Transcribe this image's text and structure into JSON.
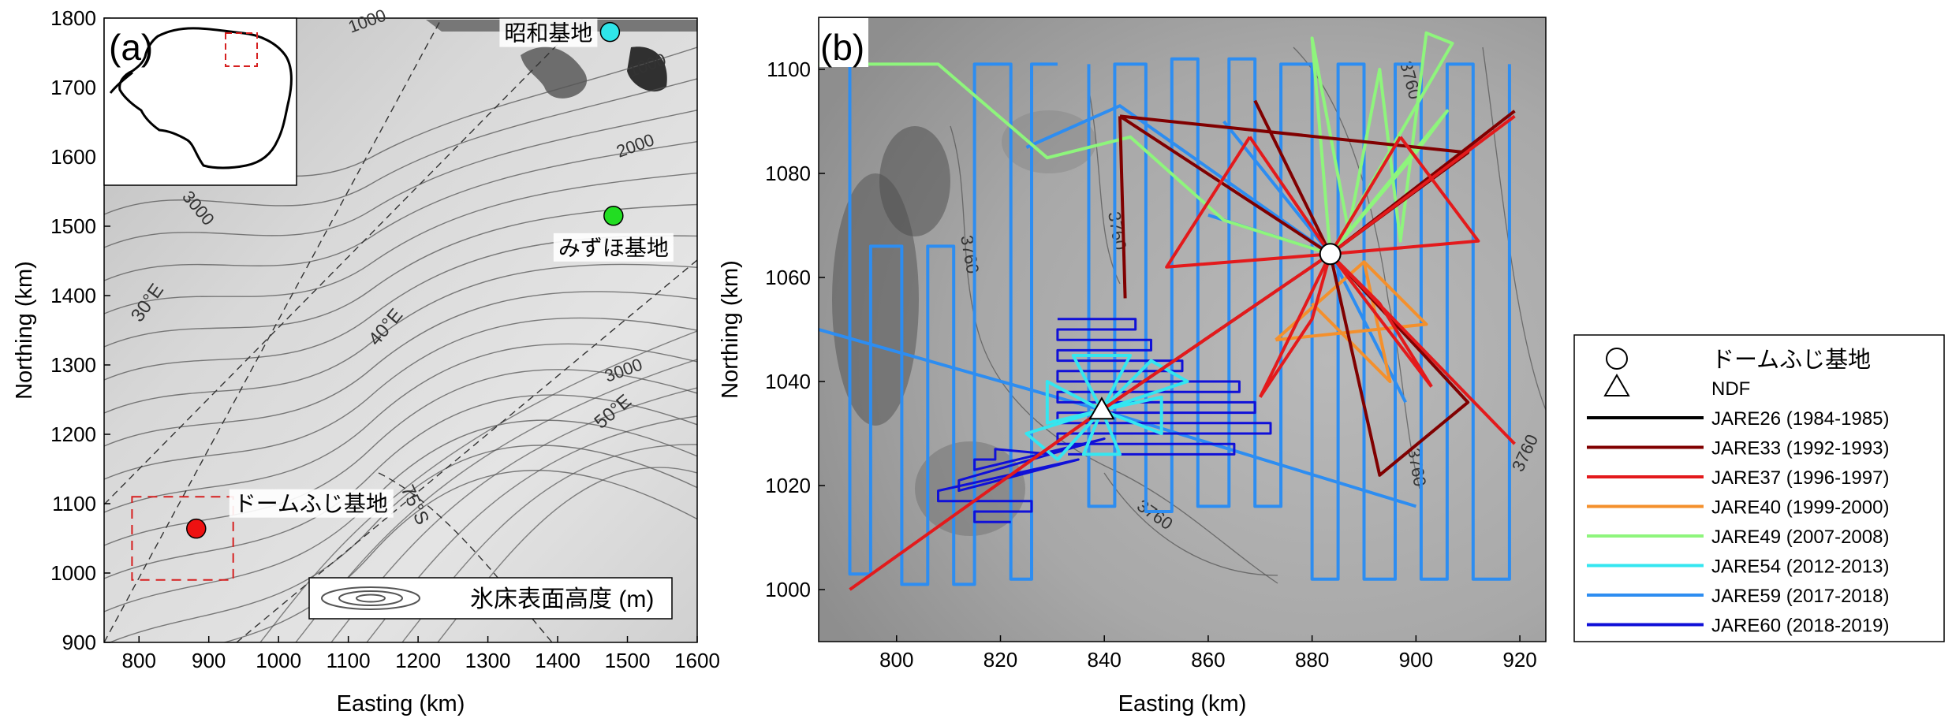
{
  "colors": {
    "JARE26": "#000000",
    "JARE33": "#800000",
    "JARE37": "#e31a1c",
    "JARE40": "#f4902c",
    "JARE49": "#8ef57c",
    "JARE54": "#34e6f0",
    "JARE59": "#2d8df1",
    "JARE60": "#1010d8",
    "showa": "#2fe5ea",
    "mizuho": "#22dd22",
    "dome_fuji": "#ee1111"
  },
  "chart_data": [
    {
      "panel": "(a)",
      "type": "map",
      "xlabel": "Easting (km)",
      "ylabel": "Northing (km)",
      "xlim": [
        750,
        1600
      ],
      "ylim": [
        900,
        1800
      ],
      "xticks": [
        "800",
        "900",
        "1000",
        "1100",
        "1200",
        "1300",
        "1400",
        "1500",
        "1600"
      ],
      "yticks": [
        "900",
        "1000",
        "1100",
        "1200",
        "1300",
        "1400",
        "1500",
        "1600",
        "1700",
        "1800"
      ],
      "stations": [
        {
          "name": "昭和基地",
          "x": 1475,
          "y": 1780,
          "color_key": "showa"
        },
        {
          "name": "みずほ基地",
          "x": 1480,
          "y": 1515,
          "color_key": "mizuho"
        },
        {
          "name": "ドームふじ基地",
          "x": 882,
          "y": 1064,
          "color_key": "dome_fuji"
        }
      ],
      "contour_labels": [
        "1000",
        "1000",
        "2000",
        "3000",
        "3000"
      ],
      "graticule_labels": [
        "30°E",
        "40°E",
        "50°E",
        "75°S"
      ],
      "inset_box": {
        "x0": 790,
        "x1": 935,
        "y0": 990,
        "y1": 1110
      },
      "legend": {
        "label": "氷床表面高度 (m)",
        "placement": "bottom-right"
      }
    },
    {
      "panel": "(b)",
      "type": "line",
      "xlabel": "Easting (km)",
      "ylabel": "Northing (km)",
      "xlim": [
        785,
        925
      ],
      "ylim": [
        990,
        1110
      ],
      "xticks": [
        "800",
        "820",
        "840",
        "860",
        "880",
        "900",
        "920"
      ],
      "yticks": [
        "1000",
        "1020",
        "1040",
        "1060",
        "1080",
        "1100"
      ],
      "contour_labels": [
        "3760",
        "3760",
        "3760",
        "3760",
        "3760",
        "3760"
      ],
      "markers": [
        {
          "name": "ドームふじ基地",
          "shape": "circle",
          "x": 883.5,
          "y": 1064.5
        },
        {
          "name": "NDF",
          "shape": "triangle",
          "x": 839.5,
          "y": 1034.5
        }
      ],
      "series": [
        {
          "name": "JARE26 (1984-1985)",
          "color_key": "JARE26",
          "segments": []
        },
        {
          "name": "JARE33 (1992-1993)",
          "color_key": "JARE33",
          "segments": [
            [
              [
                843,
                1091
              ],
              [
                910,
                1084
              ],
              [
                883.5,
                1064.5
              ],
              [
                843,
                1091
              ]
            ],
            [
              [
                843,
                1091
              ],
              [
                844,
                1056
              ]
            ],
            [
              [
                869,
                1094
              ],
              [
                883.5,
                1064.5
              ],
              [
                893,
                1022
              ],
              [
                910,
                1036
              ],
              [
                883.5,
                1064.5
              ]
            ],
            [
              [
                839.5,
                1034.5
              ],
              [
                883.5,
                1064.5
              ],
              [
                919,
                1092
              ]
            ]
          ]
        },
        {
          "name": "JARE37 (1996-1997)",
          "color_key": "JARE37",
          "segments": [
            [
              [
                791,
                1000
              ],
              [
                839.5,
                1034.5
              ],
              [
                883.5,
                1064.5
              ],
              [
                919,
                1091
              ]
            ],
            [
              [
                868,
                1087
              ],
              [
                852,
                1062
              ],
              [
                883.5,
                1064.5
              ],
              [
                868,
                1087
              ]
            ],
            [
              [
                897,
                1087
              ],
              [
                912,
                1067
              ],
              [
                883.5,
                1064.5
              ],
              [
                897,
                1087
              ]
            ],
            [
              [
                870,
                1037
              ],
              [
                880,
                1052
              ],
              [
                883.5,
                1064.5
              ],
              [
                870,
                1037
              ]
            ],
            [
              [
                903,
                1039
              ],
              [
                893,
                1055
              ],
              [
                883.5,
                1064.5
              ],
              [
                903,
                1039
              ]
            ],
            [
              [
                883.5,
                1064.5
              ],
              [
                919,
                1028
              ]
            ]
          ]
        },
        {
          "name": "JARE40 (1999-2000)",
          "color_key": "JARE40",
          "segments": [
            [
              [
                873,
                1048
              ],
              [
                890,
                1063
              ],
              [
                902,
                1051
              ],
              [
                873,
                1048
              ]
            ],
            [
              [
                890,
                1063
              ],
              [
                895,
                1040
              ],
              [
                880,
                1055
              ]
            ]
          ]
        },
        {
          "name": "JARE49 (2007-2008)",
          "color_key": "JARE49",
          "segments": [
            [
              [
                785,
                1101
              ],
              [
                808,
                1101
              ],
              [
                829,
                1083
              ],
              [
                845,
                1087
              ],
              [
                863,
                1071
              ],
              [
                883.5,
                1064.5
              ]
            ],
            [
              [
                883.5,
                1064.5
              ],
              [
                880,
                1106
              ],
              [
                887,
                1069
              ],
              [
                893,
                1100
              ],
              [
                897,
                1067
              ],
              [
                902,
                1107
              ],
              [
                907,
                1105
              ],
              [
                883.5,
                1064.5
              ]
            ],
            [
              [
                883.5,
                1064.5
              ],
              [
                906,
                1092
              ],
              [
                900,
                1084
              ],
              [
                883.5,
                1064.5
              ]
            ]
          ]
        },
        {
          "name": "JARE54 (2012-2013)",
          "color_key": "JARE54",
          "segments": [
            [
              [
                839.5,
                1034.5
              ],
              [
                834,
                1045
              ],
              [
                845,
                1045
              ],
              [
                839.5,
                1034.5
              ],
              [
                843,
                1026
              ],
              [
                836,
                1026
              ],
              [
                839.5,
                1034.5
              ]
            ],
            [
              [
                839.5,
                1034.5
              ],
              [
                829,
                1040
              ],
              [
                829,
                1032
              ],
              [
                839.5,
                1034.5
              ],
              [
                851,
                1037
              ],
              [
                851,
                1030
              ],
              [
                839.5,
                1034.5
              ]
            ],
            [
              [
                839.5,
                1034.5
              ],
              [
                831,
                1025
              ],
              [
                825,
                1030
              ],
              [
                839.5,
                1034.5
              ],
              [
                849,
                1044
              ],
              [
                856,
                1040
              ],
              [
                839.5,
                1034.5
              ]
            ]
          ]
        },
        {
          "name": "JARE59 (2017-2018)",
          "color_key": "JARE59",
          "segments": [
            [
              [
                791,
                1101
              ],
              [
                791,
                1003
              ],
              [
                795,
                1003
              ],
              [
                795,
                1066
              ],
              [
                801,
                1066
              ],
              [
                801,
                1001
              ],
              [
                806,
                1001
              ],
              [
                806,
                1066
              ],
              [
                811,
                1066
              ],
              [
                811,
                1001
              ],
              [
                815,
                1001
              ],
              [
                815,
                1101
              ],
              [
                822,
                1101
              ],
              [
                822,
                1002
              ],
              [
                826,
                1002
              ],
              [
                826,
                1101
              ],
              [
                831,
                1101
              ]
            ],
            [
              [
                837,
                1101
              ],
              [
                837,
                1016
              ],
              [
                842,
                1016
              ],
              [
                842,
                1101
              ],
              [
                848,
                1101
              ],
              [
                848,
                1015
              ],
              [
                853,
                1015
              ],
              [
                853,
                1102
              ],
              [
                858,
                1102
              ],
              [
                858,
                1016
              ],
              [
                864,
                1016
              ],
              [
                864,
                1102
              ],
              [
                869,
                1102
              ],
              [
                869,
                1016
              ],
              [
                874,
                1016
              ],
              [
                874,
                1101
              ],
              [
                880,
                1101
              ],
              [
                880,
                1002
              ],
              [
                885,
                1002
              ],
              [
                885,
                1101
              ],
              [
                890,
                1101
              ],
              [
                890,
                1002
              ],
              [
                896,
                1002
              ],
              [
                896,
                1101
              ],
              [
                901,
                1101
              ],
              [
                901,
                1002
              ],
              [
                906,
                1002
              ],
              [
                906,
                1101
              ],
              [
                911,
                1101
              ],
              [
                911,
                1002
              ],
              [
                918,
                1002
              ],
              [
                918,
                1101
              ]
            ],
            [
              [
                785,
                1050
              ],
              [
                839.5,
                1034.5
              ],
              [
                900,
                1016
              ]
            ],
            [
              [
                825,
                1085
              ],
              [
                843,
                1093
              ],
              [
                883.5,
                1064.5
              ],
              [
                898,
                1036
              ]
            ],
            [
              [
                860,
                1072
              ],
              [
                883.5,
                1064.5
              ],
              [
                863,
                1090
              ]
            ]
          ]
        },
        {
          "name": "JARE60 (2018-2019)",
          "color_key": "JARE60",
          "segments": [
            [
              [
                831,
                1052
              ],
              [
                846,
                1052
              ],
              [
                846,
                1050
              ],
              [
                831,
                1050
              ],
              [
                831,
                1048
              ],
              [
                849,
                1048
              ],
              [
                849,
                1046
              ],
              [
                831,
                1046
              ],
              [
                831,
                1044
              ],
              [
                855,
                1044
              ],
              [
                855,
                1042
              ],
              [
                831,
                1042
              ],
              [
                831,
                1040
              ],
              [
                866,
                1040
              ],
              [
                866,
                1038
              ],
              [
                831,
                1038
              ],
              [
                831,
                1036
              ],
              [
                869,
                1036
              ],
              [
                869,
                1034
              ],
              [
                831,
                1034
              ],
              [
                831,
                1032
              ],
              [
                872,
                1032
              ],
              [
                872,
                1030
              ],
              [
                831,
                1030
              ],
              [
                831,
                1028
              ],
              [
                865,
                1028
              ],
              [
                865,
                1026
              ],
              [
                833,
                1026
              ]
            ],
            [
              [
                830,
                1026
              ],
              [
                819,
                1027
              ],
              [
                819,
                1025
              ],
              [
                815,
                1025
              ],
              [
                815,
                1023
              ],
              [
                840,
                1029
              ],
              [
                812,
                1021
              ],
              [
                812,
                1019
              ],
              [
                835,
                1025
              ],
              [
                808,
                1019
              ],
              [
                808,
                1017
              ],
              [
                826,
                1017
              ],
              [
                826,
                1015
              ],
              [
                815,
                1015
              ],
              [
                815,
                1013
              ],
              [
                822,
                1013
              ]
            ]
          ]
        }
      ]
    }
  ]
}
